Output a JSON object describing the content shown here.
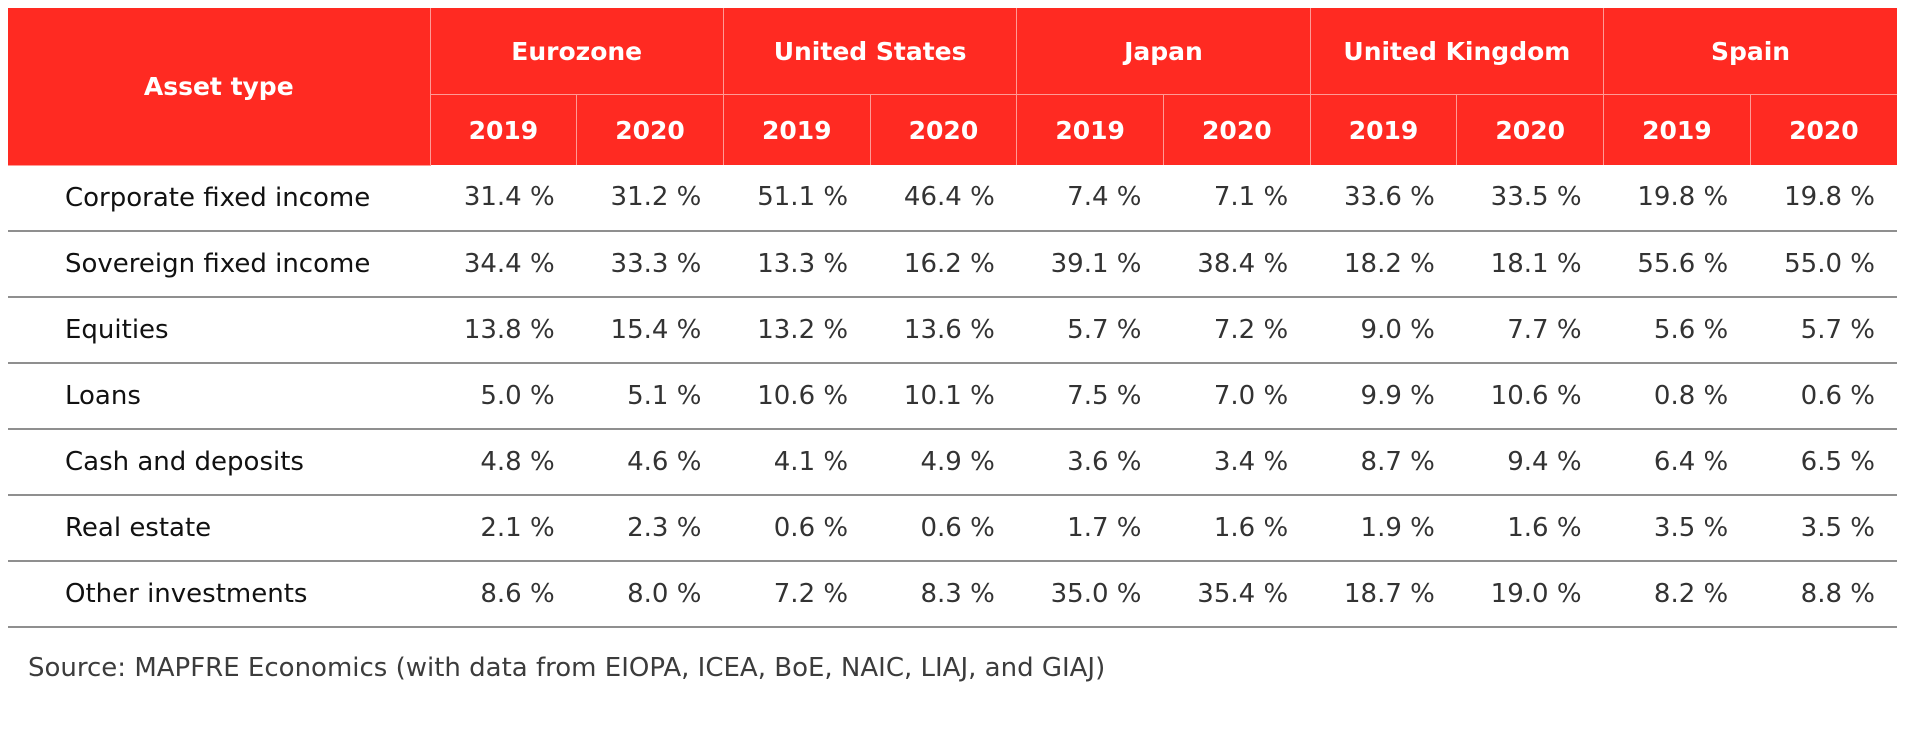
{
  "table": {
    "asset_header": "Asset type",
    "regions": [
      "Eurozone",
      "United States",
      "Japan",
      "United Kingdom",
      "Spain"
    ],
    "years": [
      "2019",
      "2020"
    ],
    "rows": [
      {
        "asset": "Corporate fixed income",
        "values": [
          "31.4 %",
          "31.2 %",
          "51.1 %",
          "46.4 %",
          "7.4 %",
          "7.1 %",
          "33.6 %",
          "33.5 %",
          "19.8 %",
          "19.8 %"
        ]
      },
      {
        "asset": "Sovereign fixed income",
        "values": [
          "34.4 %",
          "33.3 %",
          "13.3 %",
          "16.2 %",
          "39.1 %",
          "38.4 %",
          "18.2 %",
          "18.1 %",
          "55.6 %",
          "55.0 %"
        ]
      },
      {
        "asset": "Equities",
        "values": [
          "13.8 %",
          "15.4 %",
          "13.2 %",
          "13.6 %",
          "5.7 %",
          "7.2 %",
          "9.0 %",
          "7.7 %",
          "5.6 %",
          "5.7 %"
        ]
      },
      {
        "asset": "Loans",
        "values": [
          "5.0 %",
          "5.1 %",
          "10.6 %",
          "10.1 %",
          "7.5 %",
          "7.0 %",
          "9.9 %",
          "10.6 %",
          "0.8 %",
          "0.6 %"
        ]
      },
      {
        "asset": "Cash and deposits",
        "values": [
          "4.8 %",
          "4.6 %",
          "4.1 %",
          "4.9 %",
          "3.6 %",
          "3.4 %",
          "8.7 %",
          "9.4 %",
          "6.4 %",
          "6.5 %"
        ]
      },
      {
        "asset": "Real estate",
        "values": [
          "2.1 %",
          "2.3 %",
          "0.6 %",
          "0.6 %",
          "1.7 %",
          "1.6 %",
          "1.9 %",
          "1.6 %",
          "3.5 %",
          "3.5 %"
        ]
      },
      {
        "asset": "Other investments",
        "values": [
          "8.6 %",
          "8.0 %",
          "7.2 %",
          "8.3 %",
          "35.0 %",
          "35.4 %",
          "18.7 %",
          "19.0 %",
          "8.2 %",
          "8.8 %"
        ]
      }
    ]
  },
  "source": "Source: MAPFRE Economics (with data from EIOPA, ICEA, BoE, NAIC, LIAJ, and GIAJ)",
  "colors": {
    "header_bg": "#ff2a22",
    "header_text": "#ffffff",
    "row_rule": "#8f8f8f"
  }
}
